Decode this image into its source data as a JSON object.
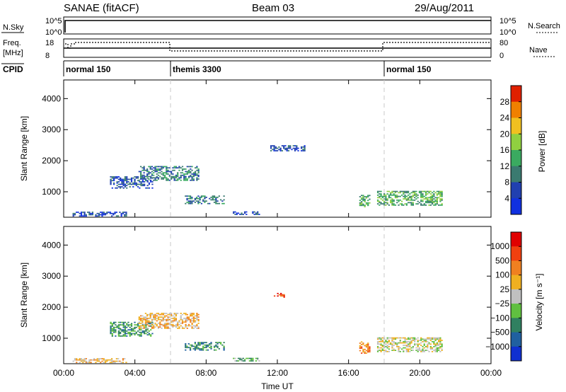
{
  "header": {
    "station": "SANAE (fitACF)",
    "beam": "Beam 03",
    "date": "29/Aug/2011"
  },
  "strips": {
    "nsky": {
      "label": "N.Sky",
      "tick_top": "10^5",
      "tick_bottom": "10^0"
    },
    "nsearch": {
      "label": "N.Search",
      "tick_top": "10^5",
      "tick_bottom": "10^0"
    },
    "freq": {
      "label_line1": "Freq.",
      "label_line2": "[MHz]",
      "tick_top": "18",
      "tick_bottom": "8"
    },
    "nave": {
      "label": "Nave",
      "tick_top": "80",
      "tick_bottom": "0"
    },
    "cpid": {
      "label": "CPID",
      "modes": [
        {
          "name": "normal 150",
          "start": 0,
          "end": 6
        },
        {
          "name": "themis 3300",
          "start": 6,
          "end": 18
        },
        {
          "name": "normal 150",
          "start": 18,
          "end": 24
        }
      ]
    }
  },
  "chart_data": [
    {
      "type": "heatmap",
      "title": "",
      "xlabel": "Time UT",
      "ylabel": "Slant Range [km]",
      "xlim": [
        0,
        24
      ],
      "ylim": [
        180,
        4600
      ],
      "x_ticks": [
        "00:00",
        "04:00",
        "08:00",
        "12:00",
        "16:00",
        "20:00",
        "00:00"
      ],
      "y_ticks": [
        "1000",
        "2000",
        "3000",
        "4000"
      ],
      "colorbar": {
        "label": "Power [dB]",
        "ticks": [
          "4",
          "8",
          "12",
          "16",
          "20",
          "24",
          "28"
        ],
        "colors": [
          "#1030e0",
          "#2040b0",
          "#3a7a70",
          "#3aaa60",
          "#90d040",
          "#f0c020",
          "#f08000",
          "#e02000"
        ]
      },
      "regions": [
        {
          "t0": 2.6,
          "t1": 5.0,
          "r0": 1100,
          "r1": 1500,
          "level": 1
        },
        {
          "t0": 4.2,
          "t1": 7.6,
          "r0": 1350,
          "r1": 1800,
          "level": 2
        },
        {
          "t0": 6.8,
          "t1": 9.0,
          "r0": 600,
          "r1": 850,
          "level": 2
        },
        {
          "t0": 9.5,
          "t1": 11.0,
          "r0": 250,
          "r1": 350,
          "level": 1
        },
        {
          "t0": 16.6,
          "t1": 17.2,
          "r0": 500,
          "r1": 900,
          "level": 3
        },
        {
          "t0": 17.6,
          "t1": 21.2,
          "r0": 550,
          "r1": 1000,
          "level": 3
        },
        {
          "t0": 11.6,
          "t1": 13.5,
          "r0": 2300,
          "r1": 2500,
          "level": 1
        },
        {
          "t0": 0.5,
          "t1": 3.5,
          "r0": 200,
          "r1": 330,
          "level": 1
        }
      ]
    },
    {
      "type": "heatmap",
      "title": "",
      "xlabel": "Time UT",
      "ylabel": "Slant Range [km]",
      "xlim": [
        0,
        24
      ],
      "ylim": [
        180,
        4600
      ],
      "x_ticks": [
        "00:00",
        "04:00",
        "08:00",
        "12:00",
        "16:00",
        "20:00",
        "00:00"
      ],
      "y_ticks": [
        "1000",
        "2000",
        "3000",
        "4000"
      ],
      "colorbar": {
        "label": "Velocity [m s⁻¹]",
        "ticks": [
          "1000",
          "500",
          "100",
          "25",
          "−25",
          "−100",
          "−500",
          "−1000"
        ],
        "colors": [
          "#1030d0",
          "#2060a0",
          "#308060",
          "#60c040",
          "#c0c0c0",
          "#f0b020",
          "#f08020",
          "#f04010",
          "#e00000"
        ]
      },
      "regions": [
        {
          "t0": 2.6,
          "t1": 5.0,
          "r0": 1050,
          "r1": 1500,
          "level": 2
        },
        {
          "t0": 4.2,
          "t1": 7.6,
          "r0": 1300,
          "r1": 1800,
          "level": 5
        },
        {
          "t0": 6.8,
          "t1": 9.0,
          "r0": 600,
          "r1": 850,
          "level": 2
        },
        {
          "t0": 9.5,
          "t1": 11.0,
          "r0": 250,
          "r1": 350,
          "level": 3
        },
        {
          "t0": 16.6,
          "t1": 17.2,
          "r0": 500,
          "r1": 900,
          "level": 6
        },
        {
          "t0": 17.6,
          "t1": 21.2,
          "r0": 550,
          "r1": 1000,
          "level": 4
        },
        {
          "t0": 11.8,
          "t1": 12.4,
          "r0": 2300,
          "r1": 2450,
          "level": 7
        },
        {
          "t0": 0.5,
          "t1": 3.5,
          "r0": 200,
          "r1": 330,
          "level": 5
        }
      ]
    }
  ]
}
